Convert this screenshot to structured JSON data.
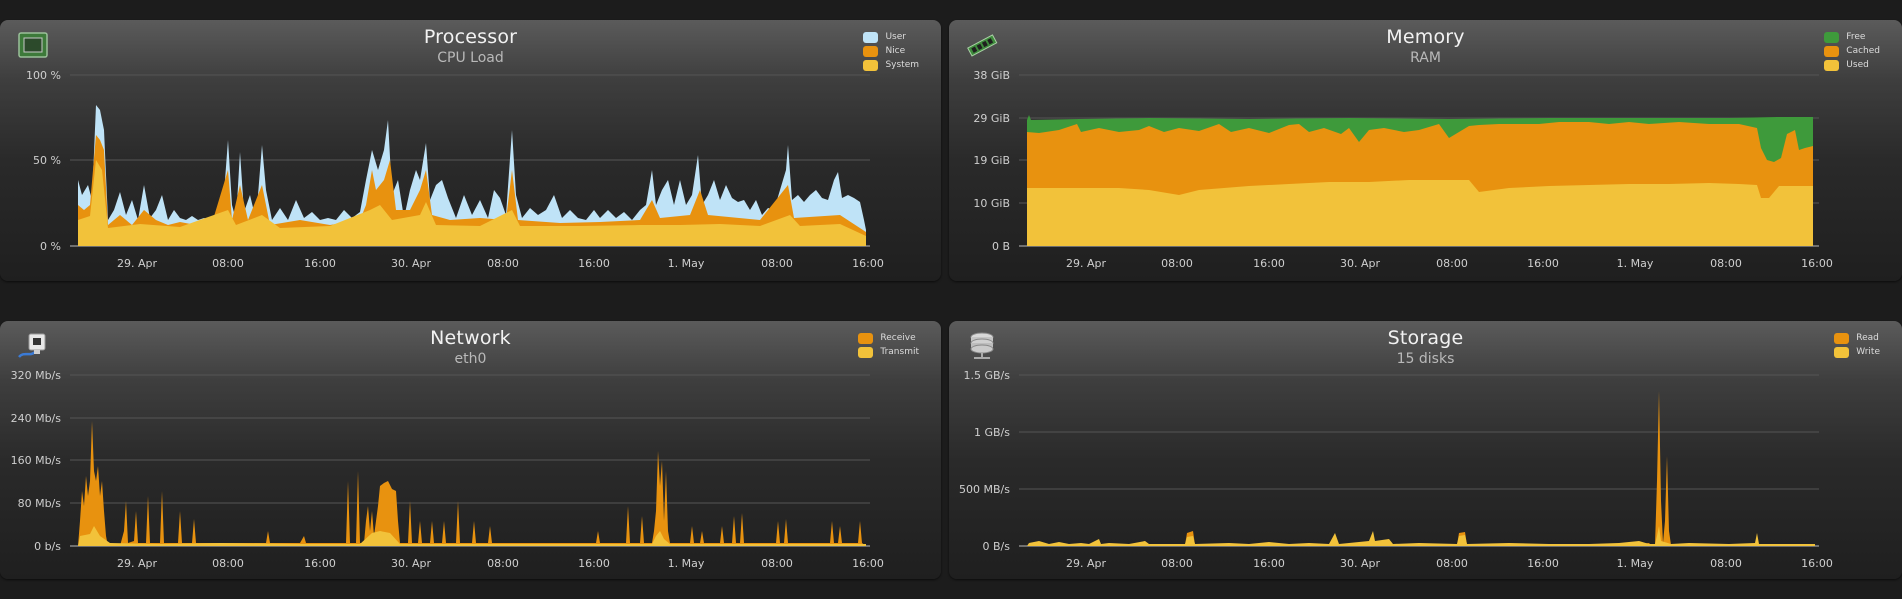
{
  "panels": [
    {
      "id": "processor",
      "title": "Processor",
      "subtitle": "CPU Load",
      "icon": "cpu-chip-icon",
      "legend": [
        {
          "label": "User",
          "color": "#bfe3f7"
        },
        {
          "label": "Nice",
          "color": "#e8920f"
        },
        {
          "label": "System",
          "color": "#f2c23a"
        }
      ],
      "y_ticks": [
        "100 %",
        "50 %",
        "0 %"
      ],
      "x_ticks": [
        "29. Apr",
        "08:00",
        "16:00",
        "30. Apr",
        "08:00",
        "16:00",
        "1. May",
        "08:00",
        "16:00"
      ]
    },
    {
      "id": "memory",
      "title": "Memory",
      "subtitle": "RAM",
      "icon": "ram-stick-icon",
      "legend": [
        {
          "label": "Free",
          "color": "#3e9a3b"
        },
        {
          "label": "Cached",
          "color": "#e8920f"
        },
        {
          "label": "Used",
          "color": "#f2c23a"
        }
      ],
      "y_ticks": [
        "38 GiB",
        "29 GiB",
        "19 GiB",
        "10 GiB",
        "0 B"
      ],
      "x_ticks": [
        "29. Apr",
        "08:00",
        "16:00",
        "30. Apr",
        "08:00",
        "16:00",
        "1. May",
        "08:00",
        "16:00"
      ]
    },
    {
      "id": "network",
      "title": "Network",
      "subtitle": "eth0",
      "icon": "network-port-icon",
      "legend": [
        {
          "label": "Receive",
          "color": "#e8920f"
        },
        {
          "label": "Transmit",
          "color": "#f2c23a"
        }
      ],
      "y_ticks": [
        "320 Mb/s",
        "240 Mb/s",
        "160 Mb/s",
        "80 Mb/s",
        "0 b/s"
      ],
      "x_ticks": [
        "29. Apr",
        "08:00",
        "16:00",
        "30. Apr",
        "08:00",
        "16:00",
        "1. May",
        "08:00",
        "16:00"
      ]
    },
    {
      "id": "storage",
      "title": "Storage",
      "subtitle": "15 disks",
      "icon": "disk-stack-icon",
      "legend": [
        {
          "label": "Read",
          "color": "#e8920f"
        },
        {
          "label": "Write",
          "color": "#f2c23a"
        }
      ],
      "y_ticks": [
        "1.5 GB/s",
        "1 GB/s",
        "500 MB/s",
        "0 B/s"
      ],
      "x_ticks": [
        "29. Apr",
        "08:00",
        "16:00",
        "30. Apr",
        "08:00",
        "16:00",
        "1. May",
        "08:00",
        "16:00"
      ]
    }
  ]
}
